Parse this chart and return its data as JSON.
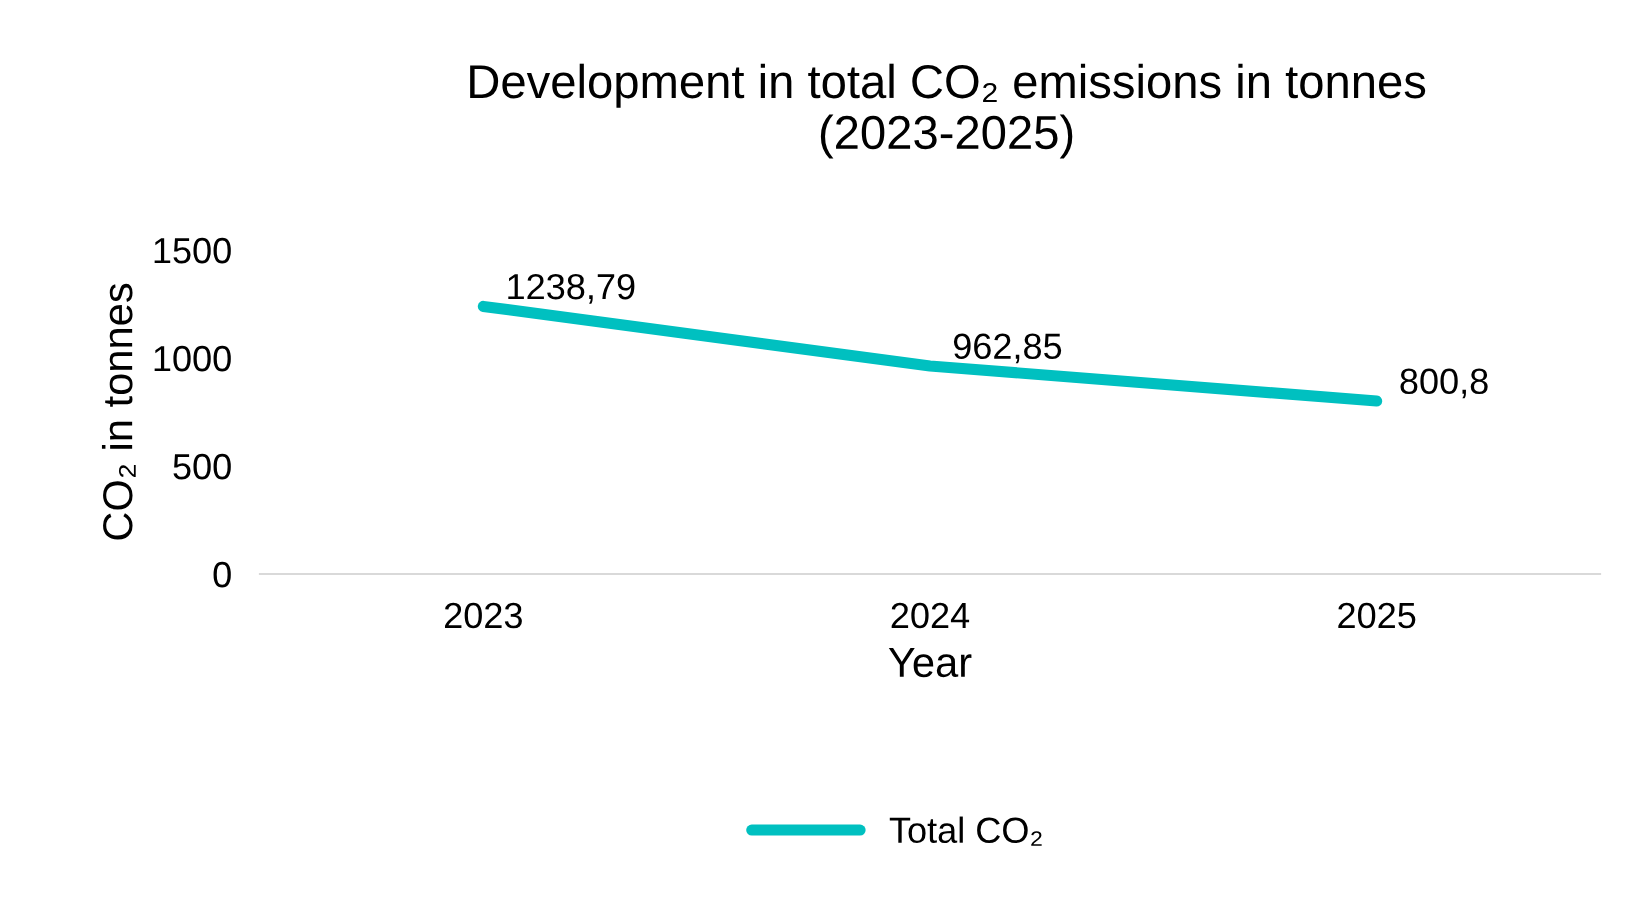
{
  "chart_data": {
    "type": "line",
    "title": "Development in total CO₂ emissions in tonnes\n(2023-2025)",
    "xlabel": "Year",
    "ylabel": "CO₂ in tonnes",
    "categories": [
      "2023",
      "2024",
      "2025"
    ],
    "series": [
      {
        "name": "Total CO₂",
        "color": "#00c0c0",
        "values": [
          1238.79,
          962.85,
          800.8
        ],
        "value_labels": [
          "1238,79",
          "962,85",
          "800,8"
        ]
      }
    ],
    "ylim": [
      0,
      1500
    ],
    "yticks": [
      0,
      500,
      1000,
      1500
    ],
    "grid": false,
    "legend": "bottom",
    "marker": "none",
    "line_style": "solid"
  }
}
